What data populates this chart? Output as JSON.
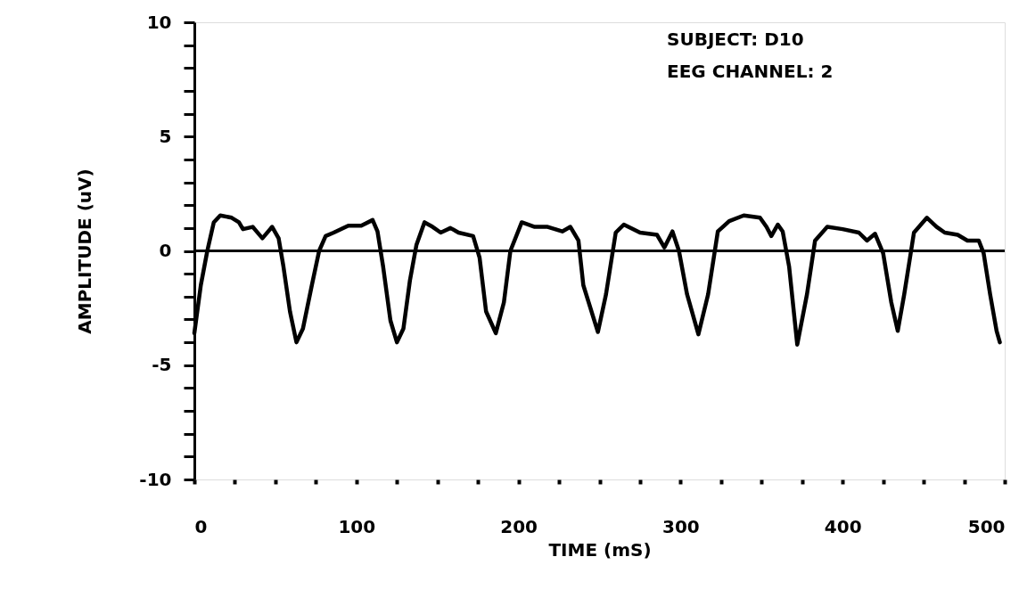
{
  "chart_data": {
    "type": "line",
    "xlabel": "TIME  (mS)",
    "ylabel": "AMPLITUDE  (uV)",
    "annotations": [
      "SUBJECT:  D10",
      "EEG CHANNEL:      2"
    ],
    "x": [
      0,
      4,
      8,
      12,
      16,
      23,
      27.5,
      30,
      36,
      42,
      48,
      52,
      55,
      59,
      63,
      67,
      72.5,
      77,
      81,
      86,
      95,
      103,
      110,
      113,
      116.5,
      121,
      125,
      129,
      133,
      137,
      142,
      147,
      152,
      158,
      163,
      172,
      176,
      180,
      186,
      191,
      195,
      202,
      210,
      218,
      227,
      232,
      237,
      240,
      249,
      254,
      260,
      265,
      275,
      285.5,
      290,
      295,
      299,
      304,
      311,
      317,
      323,
      330,
      339,
      349,
      353,
      356,
      360,
      363,
      367,
      372,
      378,
      383,
      390.5,
      400,
      410,
      415,
      420,
      425,
      430,
      434,
      438,
      444,
      452,
      458,
      463,
      471,
      477,
      484,
      487,
      491,
      495,
      497
    ],
    "series": [
      {
        "color": "#000000",
        "values": [
          -3.6,
          -1.5,
          0,
          1.25,
          1.55,
          1.45,
          1.25,
          0.95,
          1.05,
          0.55,
          1.05,
          0.55,
          -0.7,
          -2.65,
          -4.0,
          -3.4,
          -1.5,
          0,
          0.65,
          0.8,
          1.1,
          1.1,
          1.35,
          0.85,
          -0.7,
          -3.05,
          -4.0,
          -3.4,
          -1.3,
          0.25,
          1.25,
          1.05,
          0.8,
          1.0,
          0.8,
          0.65,
          -0.3,
          -2.65,
          -3.6,
          -2.25,
          0,
          1.25,
          1.05,
          1.05,
          0.85,
          1.05,
          0.45,
          -1.5,
          -3.55,
          -1.9,
          0.8,
          1.15,
          0.8,
          0.7,
          0.15,
          0.85,
          0,
          -1.9,
          -3.65,
          -1.9,
          0.85,
          1.3,
          1.55,
          1.45,
          1.05,
          0.65,
          1.15,
          0.85,
          -0.7,
          -4.1,
          -1.9,
          0.45,
          1.05,
          0.95,
          0.8,
          0.45,
          0.75,
          -0.1,
          -2.25,
          -3.5,
          -1.9,
          0.8,
          1.45,
          1.05,
          0.8,
          0.7,
          0.45,
          0.45,
          -0.1,
          -1.9,
          -3.5,
          -4.0
        ]
      }
    ],
    "xlim": [
      0,
      500
    ],
    "xticks": [
      0,
      {
        "value": 25,
        "label": null
      },
      {
        "value": 50,
        "label": null
      },
      {
        "value": 75,
        "label": null
      },
      100,
      {
        "value": 125,
        "label": null
      },
      {
        "value": 150,
        "label": null
      },
      {
        "value": 175,
        "label": null
      },
      200,
      {
        "value": 225,
        "label": null
      },
      {
        "value": 250,
        "label": null
      },
      {
        "value": 275,
        "label": null
      },
      300,
      {
        "value": 325,
        "label": null
      },
      {
        "value": 350,
        "label": null
      },
      {
        "value": 375,
        "label": null
      },
      400,
      {
        "value": 425,
        "label": null
      },
      {
        "value": 450,
        "label": null
      },
      {
        "value": 475,
        "label": null
      },
      500
    ],
    "ylim": [
      -10,
      10
    ],
    "yticks": [
      -10,
      {
        "value": -9,
        "label": null
      },
      {
        "value": -8,
        "label": null
      },
      {
        "value": -7,
        "label": null
      },
      {
        "value": -6,
        "label": null
      },
      -5,
      {
        "value": -4,
        "label": null
      },
      {
        "value": -3,
        "label": null
      },
      {
        "value": -2,
        "label": null
      },
      {
        "value": -1,
        "label": null
      },
      0,
      {
        "value": 1,
        "label": null
      },
      {
        "value": 2,
        "label": null
      },
      {
        "value": 3,
        "label": null
      },
      {
        "value": 4,
        "label": null
      },
      5,
      {
        "value": 6,
        "label": null
      },
      {
        "value": 7,
        "label": null
      },
      {
        "value": 8,
        "label": null
      },
      {
        "value": 9,
        "label": null
      },
      10
    ],
    "ref_lines": [
      {
        "axis": "y",
        "value": 0,
        "color": "#000000"
      }
    ],
    "grid": false,
    "legend": false,
    "marker": "none",
    "line_style": "solid"
  }
}
